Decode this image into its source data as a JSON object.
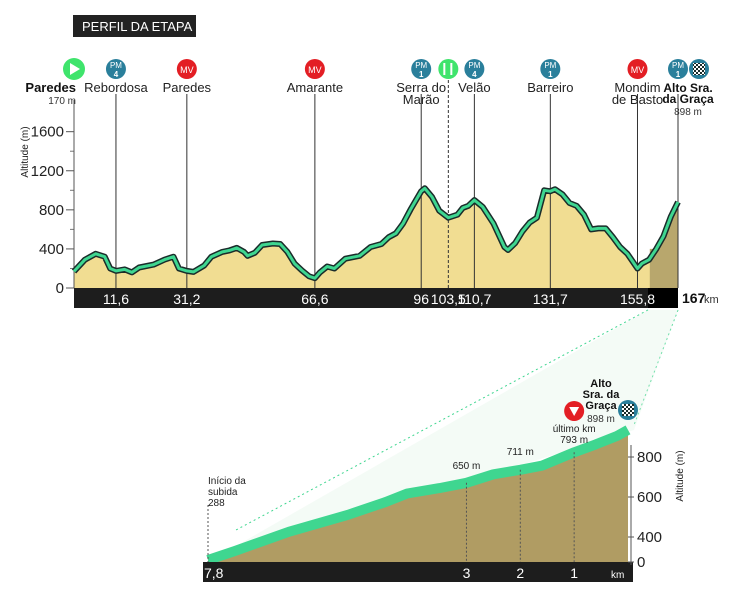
{
  "header": {
    "title": "PERFIL DA ETAPA"
  },
  "colors": {
    "title_bg": "#222222",
    "fill_main": "#f1dd92",
    "fill_dark": "#b8a76d",
    "climb_fill": "#b09c63",
    "line_green": "#3fd690",
    "line_dark": "#1a2c2a",
    "marker_green": "#3fe46c",
    "marker_teal": "#2a7f9b",
    "marker_red": "#e31e24",
    "axis_bar": "#222222"
  },
  "chart_data": [
    {
      "type": "area",
      "ylabel": "Altitude (m)",
      "yticks": [
        0,
        400,
        800,
        1200,
        1600
      ],
      "ylim": [
        0,
        1800
      ],
      "xlim": [
        0,
        167
      ],
      "unit_label": "km",
      "total_km": "167",
      "x_tick_labels": [
        "11,6",
        "31,2",
        "66,6",
        "96",
        "103,5",
        "110,7",
        "131,7",
        "155,8"
      ],
      "x_tick_values": [
        11.6,
        31.2,
        66.6,
        96,
        103.5,
        110.7,
        131.7,
        155.8
      ],
      "profile": [
        [
          0,
          170
        ],
        [
          3,
          290
        ],
        [
          6,
          350
        ],
        [
          8.5,
          320
        ],
        [
          10,
          200
        ],
        [
          11.6,
          175
        ],
        [
          14,
          190
        ],
        [
          16,
          160
        ],
        [
          18,
          210
        ],
        [
          22,
          240
        ],
        [
          25,
          290
        ],
        [
          27.5,
          320
        ],
        [
          29,
          200
        ],
        [
          31.2,
          175
        ],
        [
          33,
          165
        ],
        [
          36,
          230
        ],
        [
          38,
          320
        ],
        [
          41,
          370
        ],
        [
          43,
          385
        ],
        [
          45,
          410
        ],
        [
          47,
          370
        ],
        [
          48,
          330
        ],
        [
          50,
          360
        ],
        [
          52,
          440
        ],
        [
          55,
          455
        ],
        [
          57,
          450
        ],
        [
          59,
          370
        ],
        [
          61,
          250
        ],
        [
          63,
          180
        ],
        [
          65,
          120
        ],
        [
          66.6,
          100
        ],
        [
          68,
          160
        ],
        [
          70,
          220
        ],
        [
          72,
          200
        ],
        [
          75,
          300
        ],
        [
          79,
          330
        ],
        [
          82,
          420
        ],
        [
          85,
          450
        ],
        [
          87,
          520
        ],
        [
          89,
          560
        ],
        [
          91,
          660
        ],
        [
          93,
          800
        ],
        [
          96,
          990
        ],
        [
          97,
          1020
        ],
        [
          99,
          930
        ],
        [
          101,
          790
        ],
        [
          103.5,
          720
        ],
        [
          106,
          750
        ],
        [
          107.5,
          820
        ],
        [
          109,
          840
        ],
        [
          110.7,
          900
        ],
        [
          113,
          830
        ],
        [
          116,
          660
        ],
        [
          119,
          420
        ],
        [
          120,
          390
        ],
        [
          122,
          460
        ],
        [
          124,
          580
        ],
        [
          126,
          670
        ],
        [
          128,
          720
        ],
        [
          130,
          1000
        ],
        [
          131.7,
          990
        ],
        [
          133,
          1010
        ],
        [
          135,
          960
        ],
        [
          137,
          870
        ],
        [
          139,
          840
        ],
        [
          141,
          750
        ],
        [
          143,
          600
        ],
        [
          145,
          610
        ],
        [
          147,
          610
        ],
        [
          149,
          520
        ],
        [
          151,
          420
        ],
        [
          153,
          350
        ],
        [
          155.8,
          200
        ],
        [
          157,
          250
        ],
        [
          159,
          290
        ],
        [
          161,
          400
        ],
        [
          163,
          530
        ],
        [
          165,
          730
        ],
        [
          167,
          880
        ]
      ],
      "climb_start_km": 159.2,
      "places": [
        {
          "km": 0,
          "name": "Paredes",
          "alt": "170 m",
          "marker": "start"
        },
        {
          "km": 11.6,
          "name": "Rebordosa",
          "marker": "PM",
          "cat": "4"
        },
        {
          "km": 31.2,
          "name": "Paredes",
          "marker": "MV"
        },
        {
          "km": 66.6,
          "name": "Amarante",
          "marker": "MV"
        },
        {
          "km": 96,
          "name": "Serra do\nMarão",
          "marker": "PM",
          "cat": "1"
        },
        {
          "km": 103.5,
          "name": "",
          "marker": "feed"
        },
        {
          "km": 110.7,
          "name": "Velão",
          "marker": "PM",
          "cat": "4"
        },
        {
          "km": 131.7,
          "name": "Barreiro",
          "marker": "PM",
          "cat": "1"
        },
        {
          "km": 155.8,
          "name": "Mondim\nde Basto",
          "marker": "MV"
        },
        {
          "km": 167,
          "name": "Alto Sra.\nda Graça",
          "alt": "898 m",
          "marker": "PM+finish",
          "cat": "1"
        }
      ]
    },
    {
      "type": "area",
      "ylabel": "Altitude (m)",
      "yticks": [
        0,
        400,
        600,
        800
      ],
      "unit_label": "km",
      "x_tick_labels": [
        "7,8",
        "3",
        "2",
        "1"
      ],
      "profile_dist_to_finish": [
        [
          7.8,
          288
        ],
        [
          7.3,
          330
        ],
        [
          6.3,
          420
        ],
        [
          5.2,
          500
        ],
        [
          4.5,
          560
        ],
        [
          4.1,
          600
        ],
        [
          3.5,
          625
        ],
        [
          3.0,
          650
        ],
        [
          2.5,
          690
        ],
        [
          2.0,
          711
        ],
        [
          1.6,
          730
        ],
        [
          1.0,
          793
        ],
        [
          0.6,
          830
        ],
        [
          0.2,
          870
        ],
        [
          0,
          898
        ]
      ],
      "labels": [
        {
          "dist": 7.8,
          "text": "Início da\nsubida\n288"
        },
        {
          "dist": 3,
          "text": "650 m"
        },
        {
          "dist": 2,
          "text": "711 m"
        },
        {
          "dist": 1,
          "text": "último km\n793 m"
        },
        {
          "dist": 0,
          "text": "Alto\nSra. da\nGraça\n898 m"
        }
      ]
    }
  ]
}
